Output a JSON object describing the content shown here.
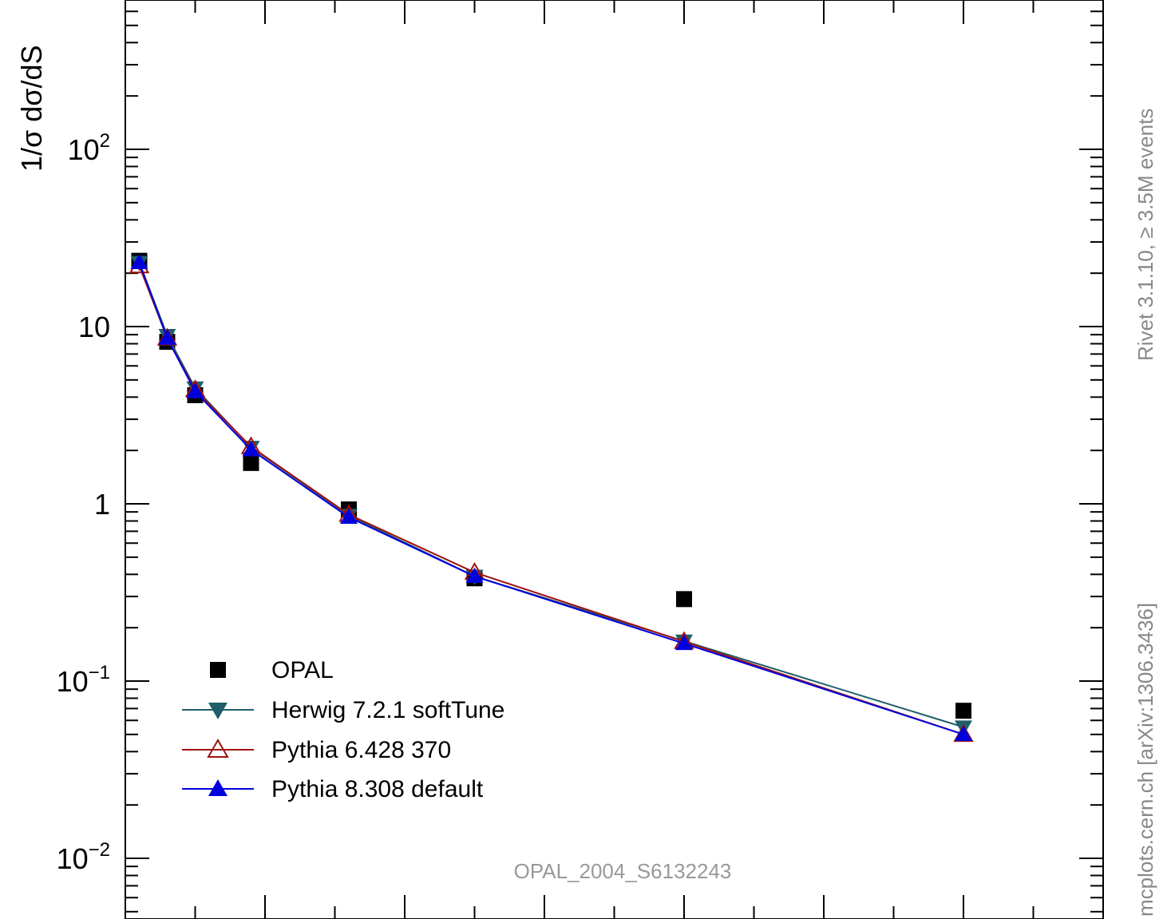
{
  "chart_data": {
    "type": "line",
    "title": "",
    "xlabel": "",
    "ylabel": "1/σ dσ/dS",
    "yscale": "log",
    "xlim": [
      0,
      0.7
    ],
    "ylim": [
      0.006,
      700
    ],
    "y_ticks": [
      {
        "value": 0.01,
        "base": "10",
        "exp": "−2"
      },
      {
        "value": 0.1,
        "base": "10",
        "exp": "−1"
      },
      {
        "value": 1,
        "base": "1",
        "exp": ""
      },
      {
        "value": 10,
        "base": "10",
        "exp": ""
      },
      {
        "value": 100,
        "base": "10",
        "exp": "2"
      }
    ],
    "grid": false,
    "legend_position": "bottom-left",
    "series": [
      {
        "name": "OPAL",
        "marker": "square",
        "color": "#000000",
        "x": [
          0.01,
          0.03,
          0.05,
          0.09,
          0.16,
          0.25,
          0.4,
          0.6
        ],
        "y": [
          23.5,
          8.2,
          4.1,
          1.7,
          0.93,
          0.38,
          0.29,
          0.068
        ]
      },
      {
        "name": "Herwig 7.2.1 softTune",
        "marker": "triangle-down",
        "color": "#1f5f6a",
        "x": [
          0.01,
          0.03,
          0.05,
          0.09,
          0.16,
          0.25,
          0.4,
          0.6
        ],
        "y": [
          23.0,
          8.9,
          4.5,
          2.08,
          0.86,
          0.39,
          0.168,
          0.055
        ]
      },
      {
        "name": "Pythia 6.428 370",
        "marker": "triangle-open",
        "color": "#a01010",
        "x": [
          0.01,
          0.03,
          0.05,
          0.09,
          0.16,
          0.25,
          0.4,
          0.6
        ],
        "y": [
          22.0,
          8.6,
          4.4,
          2.1,
          0.87,
          0.41,
          0.167,
          0.05
        ]
      },
      {
        "name": "Pythia 8.308 default",
        "marker": "triangle-up",
        "color": "#0000dd",
        "x": [
          0.01,
          0.03,
          0.05,
          0.09,
          0.16,
          0.25,
          0.4,
          0.6
        ],
        "y": [
          23.0,
          8.6,
          4.3,
          2.02,
          0.84,
          0.39,
          0.163,
          0.05
        ]
      }
    ],
    "annotations": {
      "analysis_id": "OPAL_2004_S6132243",
      "rivet_label": "Rivet 3.1.10, ≥ 3.5M events",
      "site_label": "mcplots.cern.ch [arXiv:1306.3436]"
    }
  }
}
